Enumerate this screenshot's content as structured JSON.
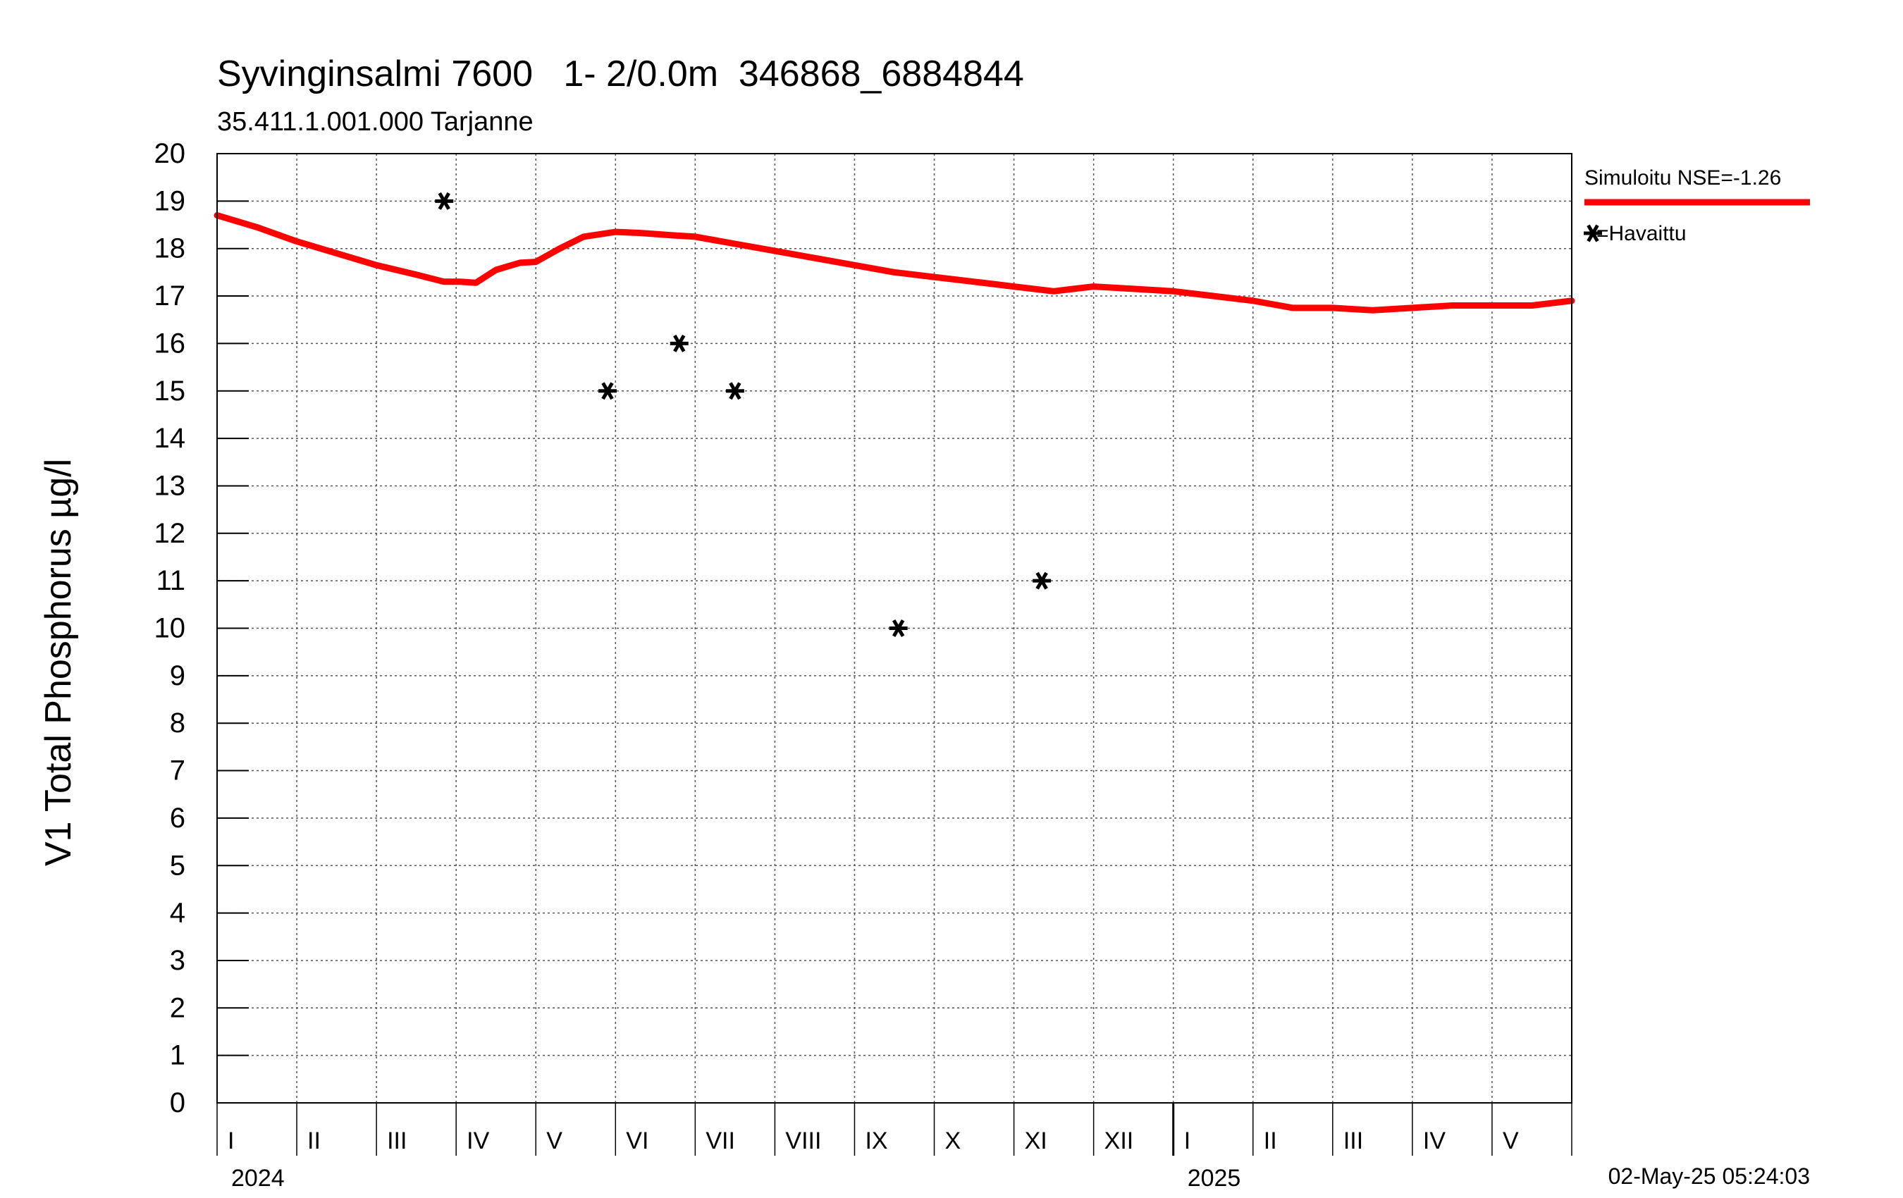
{
  "title": "Syvinginsalmi 7600   1- 2/0.0m  346868_6884844",
  "subtitle": "35.411.1.001.000 Tarjanne",
  "timestamp": "02-May-25 05:24:03",
  "chart_data": {
    "type": "line",
    "ylabel": "V1 Total Phosphorus µg/l",
    "ylim": [
      0,
      20
    ],
    "yticks": [
      0,
      1,
      2,
      3,
      4,
      5,
      6,
      7,
      8,
      9,
      10,
      11,
      12,
      13,
      14,
      15,
      16,
      17,
      18,
      19,
      20
    ],
    "xlim": [
      0,
      17
    ],
    "months": [
      {
        "label": "I",
        "start": 0
      },
      {
        "label": "II",
        "start": 1
      },
      {
        "label": "III",
        "start": 2
      },
      {
        "label": "IV",
        "start": 3
      },
      {
        "label": "V",
        "start": 4
      },
      {
        "label": "VI",
        "start": 5
      },
      {
        "label": "VII",
        "start": 6
      },
      {
        "label": "VIII",
        "start": 7
      },
      {
        "label": "IX",
        "start": 8
      },
      {
        "label": "X",
        "start": 9
      },
      {
        "label": "XI",
        "start": 10
      },
      {
        "label": "XII",
        "start": 11
      },
      {
        "label": "I",
        "start": 12
      },
      {
        "label": "II",
        "start": 13
      },
      {
        "label": "III",
        "start": 14
      },
      {
        "label": "IV",
        "start": 15
      },
      {
        "label": "V",
        "start": 16
      }
    ],
    "years": [
      {
        "label": "2024",
        "start": 0
      },
      {
        "label": "2025",
        "start": 12
      }
    ],
    "series": [
      {
        "name": "Simuloitu NSE=-1.26",
        "color": "#ff0000",
        "x": [
          0,
          0.5,
          1,
          1.5,
          2,
          2.5,
          2.85,
          3.05,
          3.25,
          3.5,
          3.8,
          4,
          4.3,
          4.6,
          5,
          5.3,
          5.7,
          6,
          6.5,
          7,
          7.5,
          8,
          8.5,
          9,
          9.5,
          10,
          10.5,
          10.75,
          11,
          11.5,
          12,
          12.5,
          13,
          13.5,
          14,
          14.5,
          15,
          15.5,
          16,
          16.5,
          17
        ],
        "y": [
          18.7,
          18.45,
          18.15,
          17.9,
          17.65,
          17.45,
          17.3,
          17.3,
          17.28,
          17.55,
          17.7,
          17.72,
          18.0,
          18.25,
          18.35,
          18.33,
          18.28,
          18.25,
          18.1,
          17.95,
          17.8,
          17.65,
          17.5,
          17.4,
          17.3,
          17.2,
          17.1,
          17.15,
          17.2,
          17.15,
          17.1,
          17.0,
          16.9,
          16.75,
          16.75,
          16.7,
          16.75,
          16.8,
          16.8,
          16.8,
          16.9
        ]
      },
      {
        "name": "=Havaittu",
        "color": "#000000",
        "marker": "asterisk",
        "x": [
          2.85,
          4.9,
          5.8,
          6.5,
          8.55,
          10.35
        ],
        "y": [
          19,
          15,
          16,
          15,
          10,
          11
        ]
      }
    ]
  }
}
